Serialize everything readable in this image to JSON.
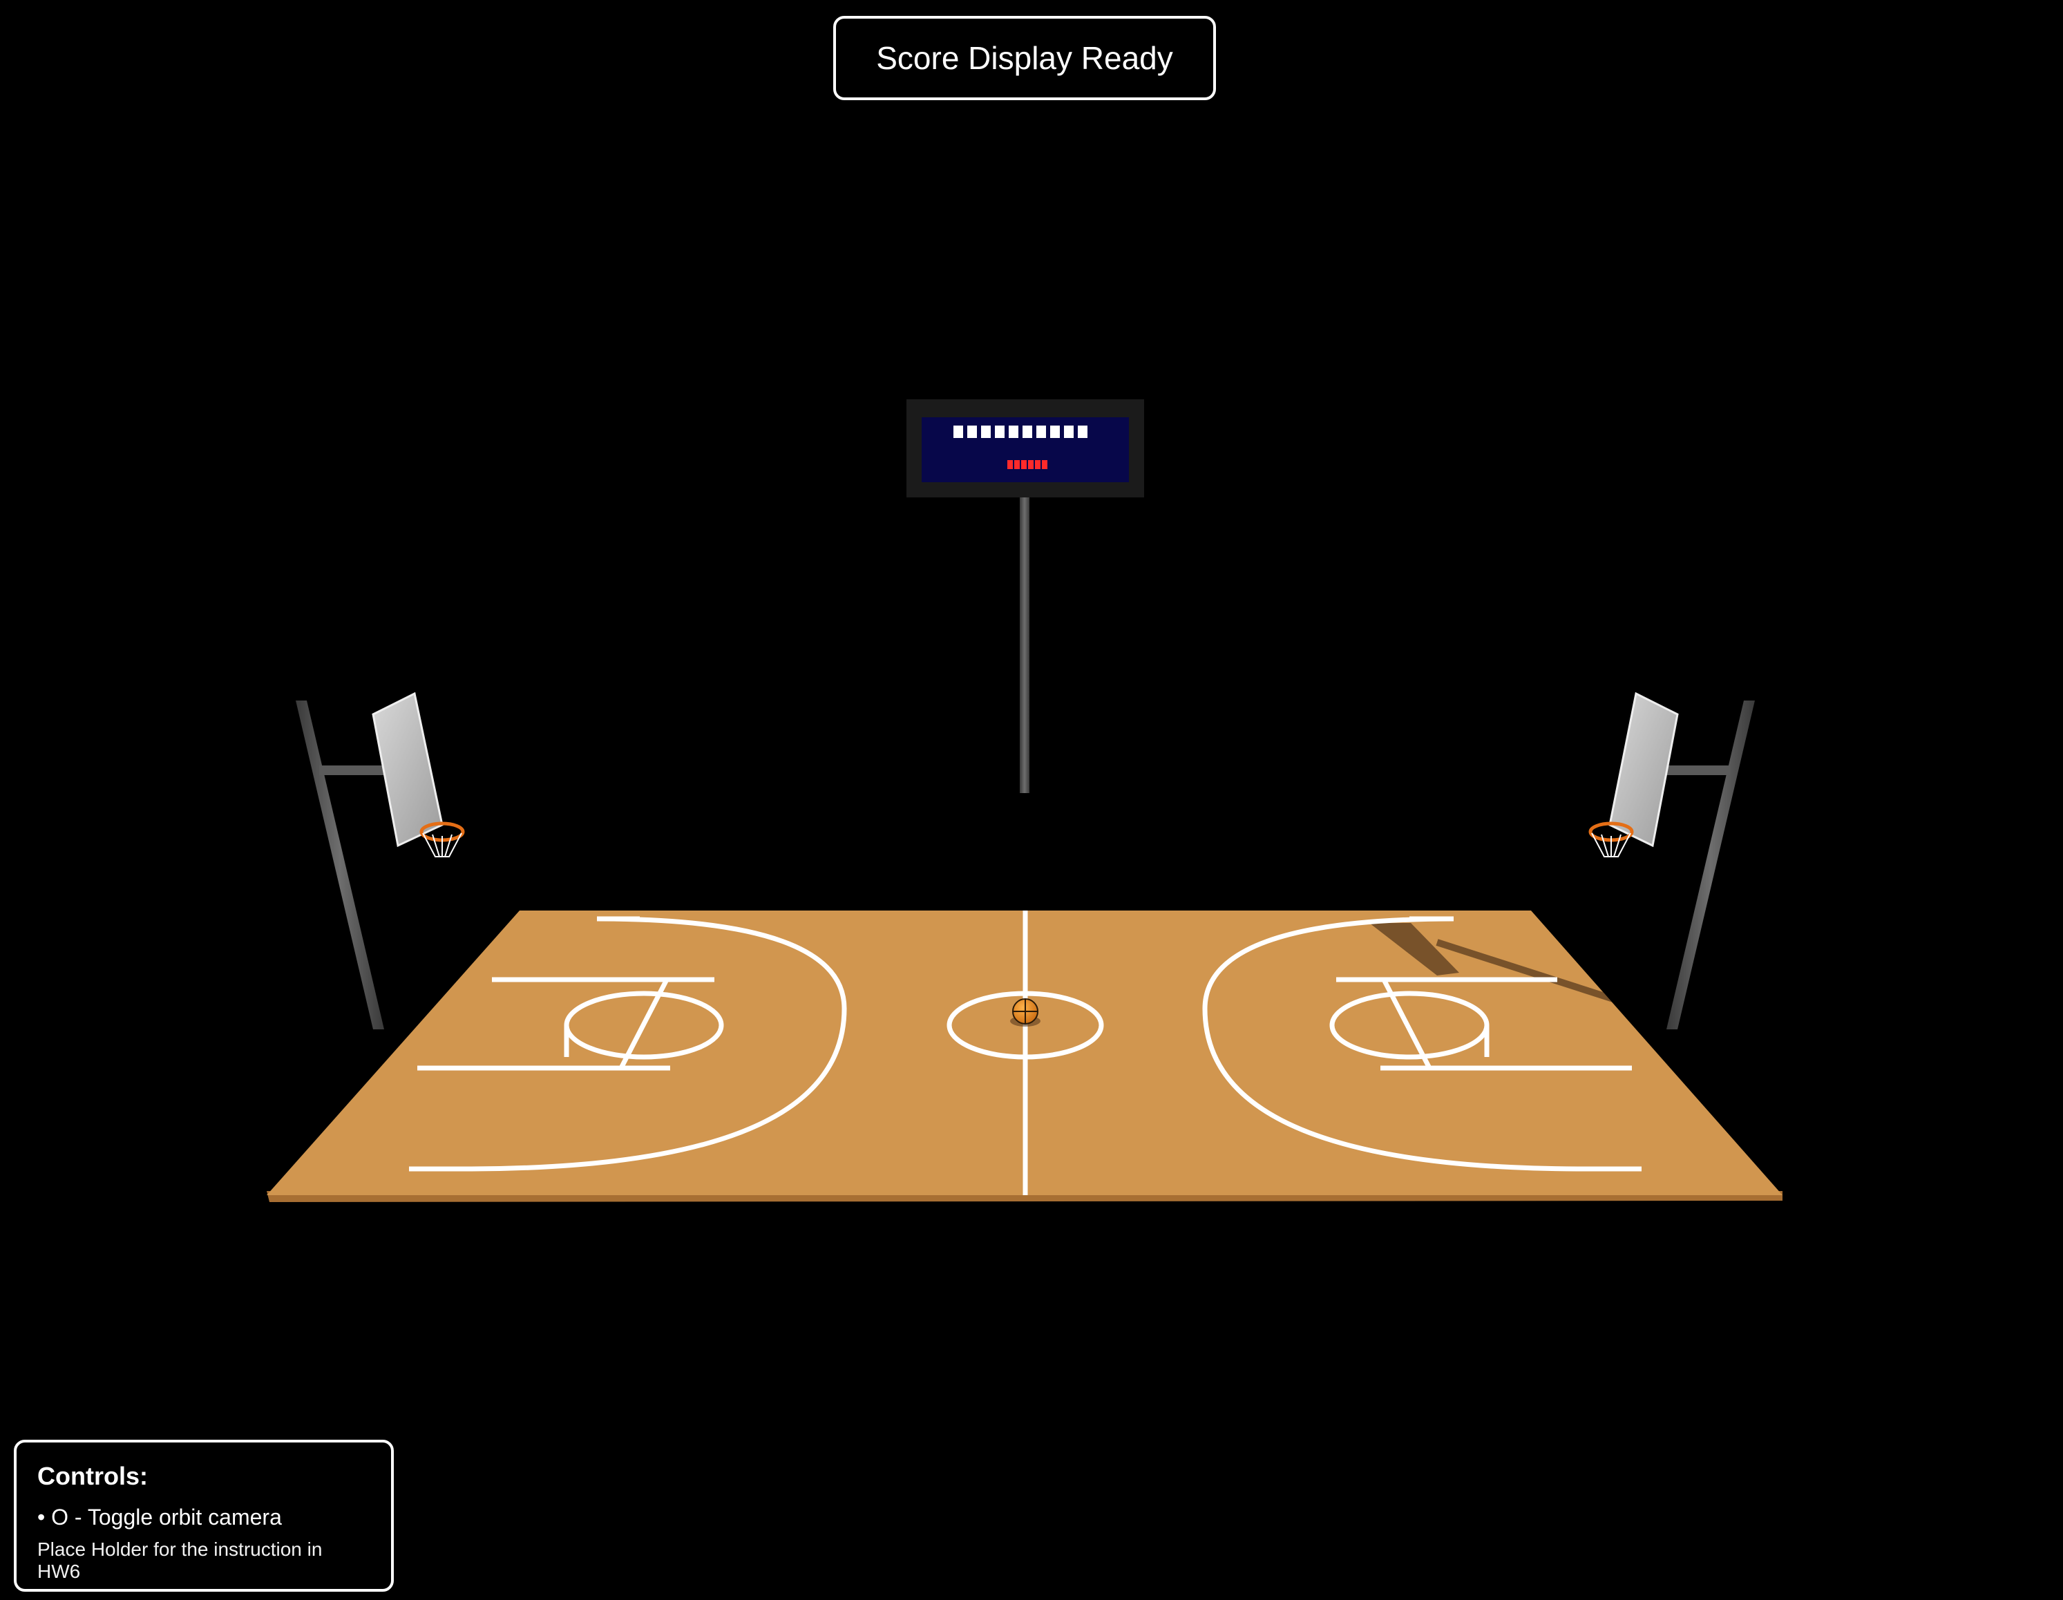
{
  "score_display": {
    "status": "Score Display Ready"
  },
  "controls": {
    "title": "Controls:",
    "items": [
      {
        "text": "• O - Toggle orbit camera"
      }
    ],
    "note": "Place Holder for the instruction in HW6"
  },
  "colors": {
    "background": "#000000",
    "court": "#d1964f",
    "court_edge": "#a86f33",
    "lines": "#ffffff",
    "pole": "#5a5a5a",
    "backboard": "#c8c8c8",
    "rim": "#e46e16",
    "scoreboard_frame": "#1b1b1b",
    "scoreboard_screen": "#07074a",
    "scoreboard_digits": "#ffffff",
    "scoreboard_timer": "#ff2a2a",
    "ball": "#f09024"
  }
}
